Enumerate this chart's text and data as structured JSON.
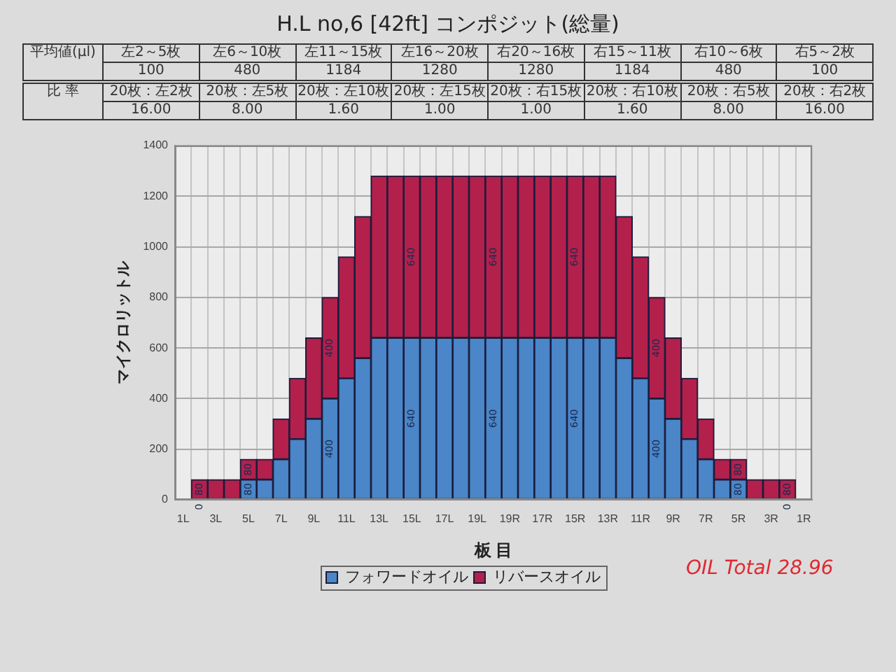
{
  "chart_data": {
    "type": "bar",
    "title": "H.L no,6 [42ft] コンポジット(総量)",
    "xlabel": "板 目",
    "ylabel": "マイクロリットル",
    "categories": [
      "1L",
      null,
      "3L",
      null,
      "5L",
      null,
      "7L",
      null,
      "9L",
      null,
      "11L",
      null,
      "13L",
      null,
      "15L",
      null,
      "17L",
      null,
      "19L",
      null,
      "19R",
      null,
      "17R",
      null,
      "15R",
      null,
      "13R",
      null,
      "11R",
      null,
      "9R",
      null,
      "7R",
      null,
      "5R",
      null,
      "3R",
      null,
      "1R"
    ],
    "stacked": true,
    "series": [
      {
        "name": "フォワードオイル",
        "color": "#4a86c8",
        "values": [
          0,
          0,
          0,
          0,
          80,
          80,
          160,
          240,
          320,
          400,
          480,
          560,
          640,
          640,
          640,
          640,
          640,
          640,
          640,
          640,
          640,
          640,
          640,
          640,
          640,
          640,
          640,
          560,
          480,
          400,
          320,
          240,
          160,
          80,
          80,
          0,
          0,
          0,
          0
        ],
        "value_labels": [
          null,
          "0",
          null,
          null,
          "80",
          null,
          null,
          null,
          null,
          "400",
          null,
          null,
          null,
          null,
          "640",
          null,
          null,
          null,
          null,
          "640",
          null,
          null,
          null,
          null,
          "640",
          null,
          null,
          null,
          null,
          "400",
          null,
          null,
          null,
          null,
          "80",
          null,
          null,
          "0",
          null
        ]
      },
      {
        "name": "リバースオイル",
        "color": "#b3204c",
        "values": [
          0,
          80,
          80,
          80,
          80,
          80,
          160,
          240,
          320,
          400,
          480,
          560,
          640,
          640,
          640,
          640,
          640,
          640,
          640,
          640,
          640,
          640,
          640,
          640,
          640,
          640,
          640,
          560,
          480,
          400,
          320,
          240,
          160,
          80,
          80,
          80,
          80,
          80,
          0
        ],
        "value_labels": [
          null,
          "80",
          null,
          null,
          "80",
          null,
          null,
          null,
          null,
          "400",
          null,
          null,
          null,
          null,
          "640",
          null,
          null,
          null,
          null,
          "640",
          null,
          null,
          null,
          null,
          "640",
          null,
          null,
          null,
          null,
          "400",
          null,
          null,
          null,
          null,
          "80",
          null,
          null,
          "80",
          null
        ]
      }
    ],
    "ylim": [
      0,
      1400
    ],
    "yticks": [
      0,
      200,
      400,
      600,
      800,
      1000,
      1200,
      1400
    ],
    "grid": true,
    "legend": "bottom",
    "annotations": [
      "平均値(μl)",
      "左2～5枚",
      "左6～10枚",
      "左11～15枚",
      "左16～20枚",
      "右20～16枚",
      "右15～11枚",
      "右10～6枚",
      "右5～2枚",
      "100",
      "480",
      "1184",
      "1280",
      "1280",
      "1184",
      "480",
      "100",
      "比 率",
      "20枚：左2枚",
      "20枚：左5枚",
      "20枚：左10枚",
      "20枚：左15枚",
      "20枚：右15枚",
      "20枚：右10枚",
      "20枚：右5枚",
      "20枚：右2枚",
      "16.00",
      "8.00",
      "1.60",
      "1.00",
      "1.00",
      "1.60",
      "8.00",
      "16.00",
      "OIL Total 28.96"
    ]
  }
}
